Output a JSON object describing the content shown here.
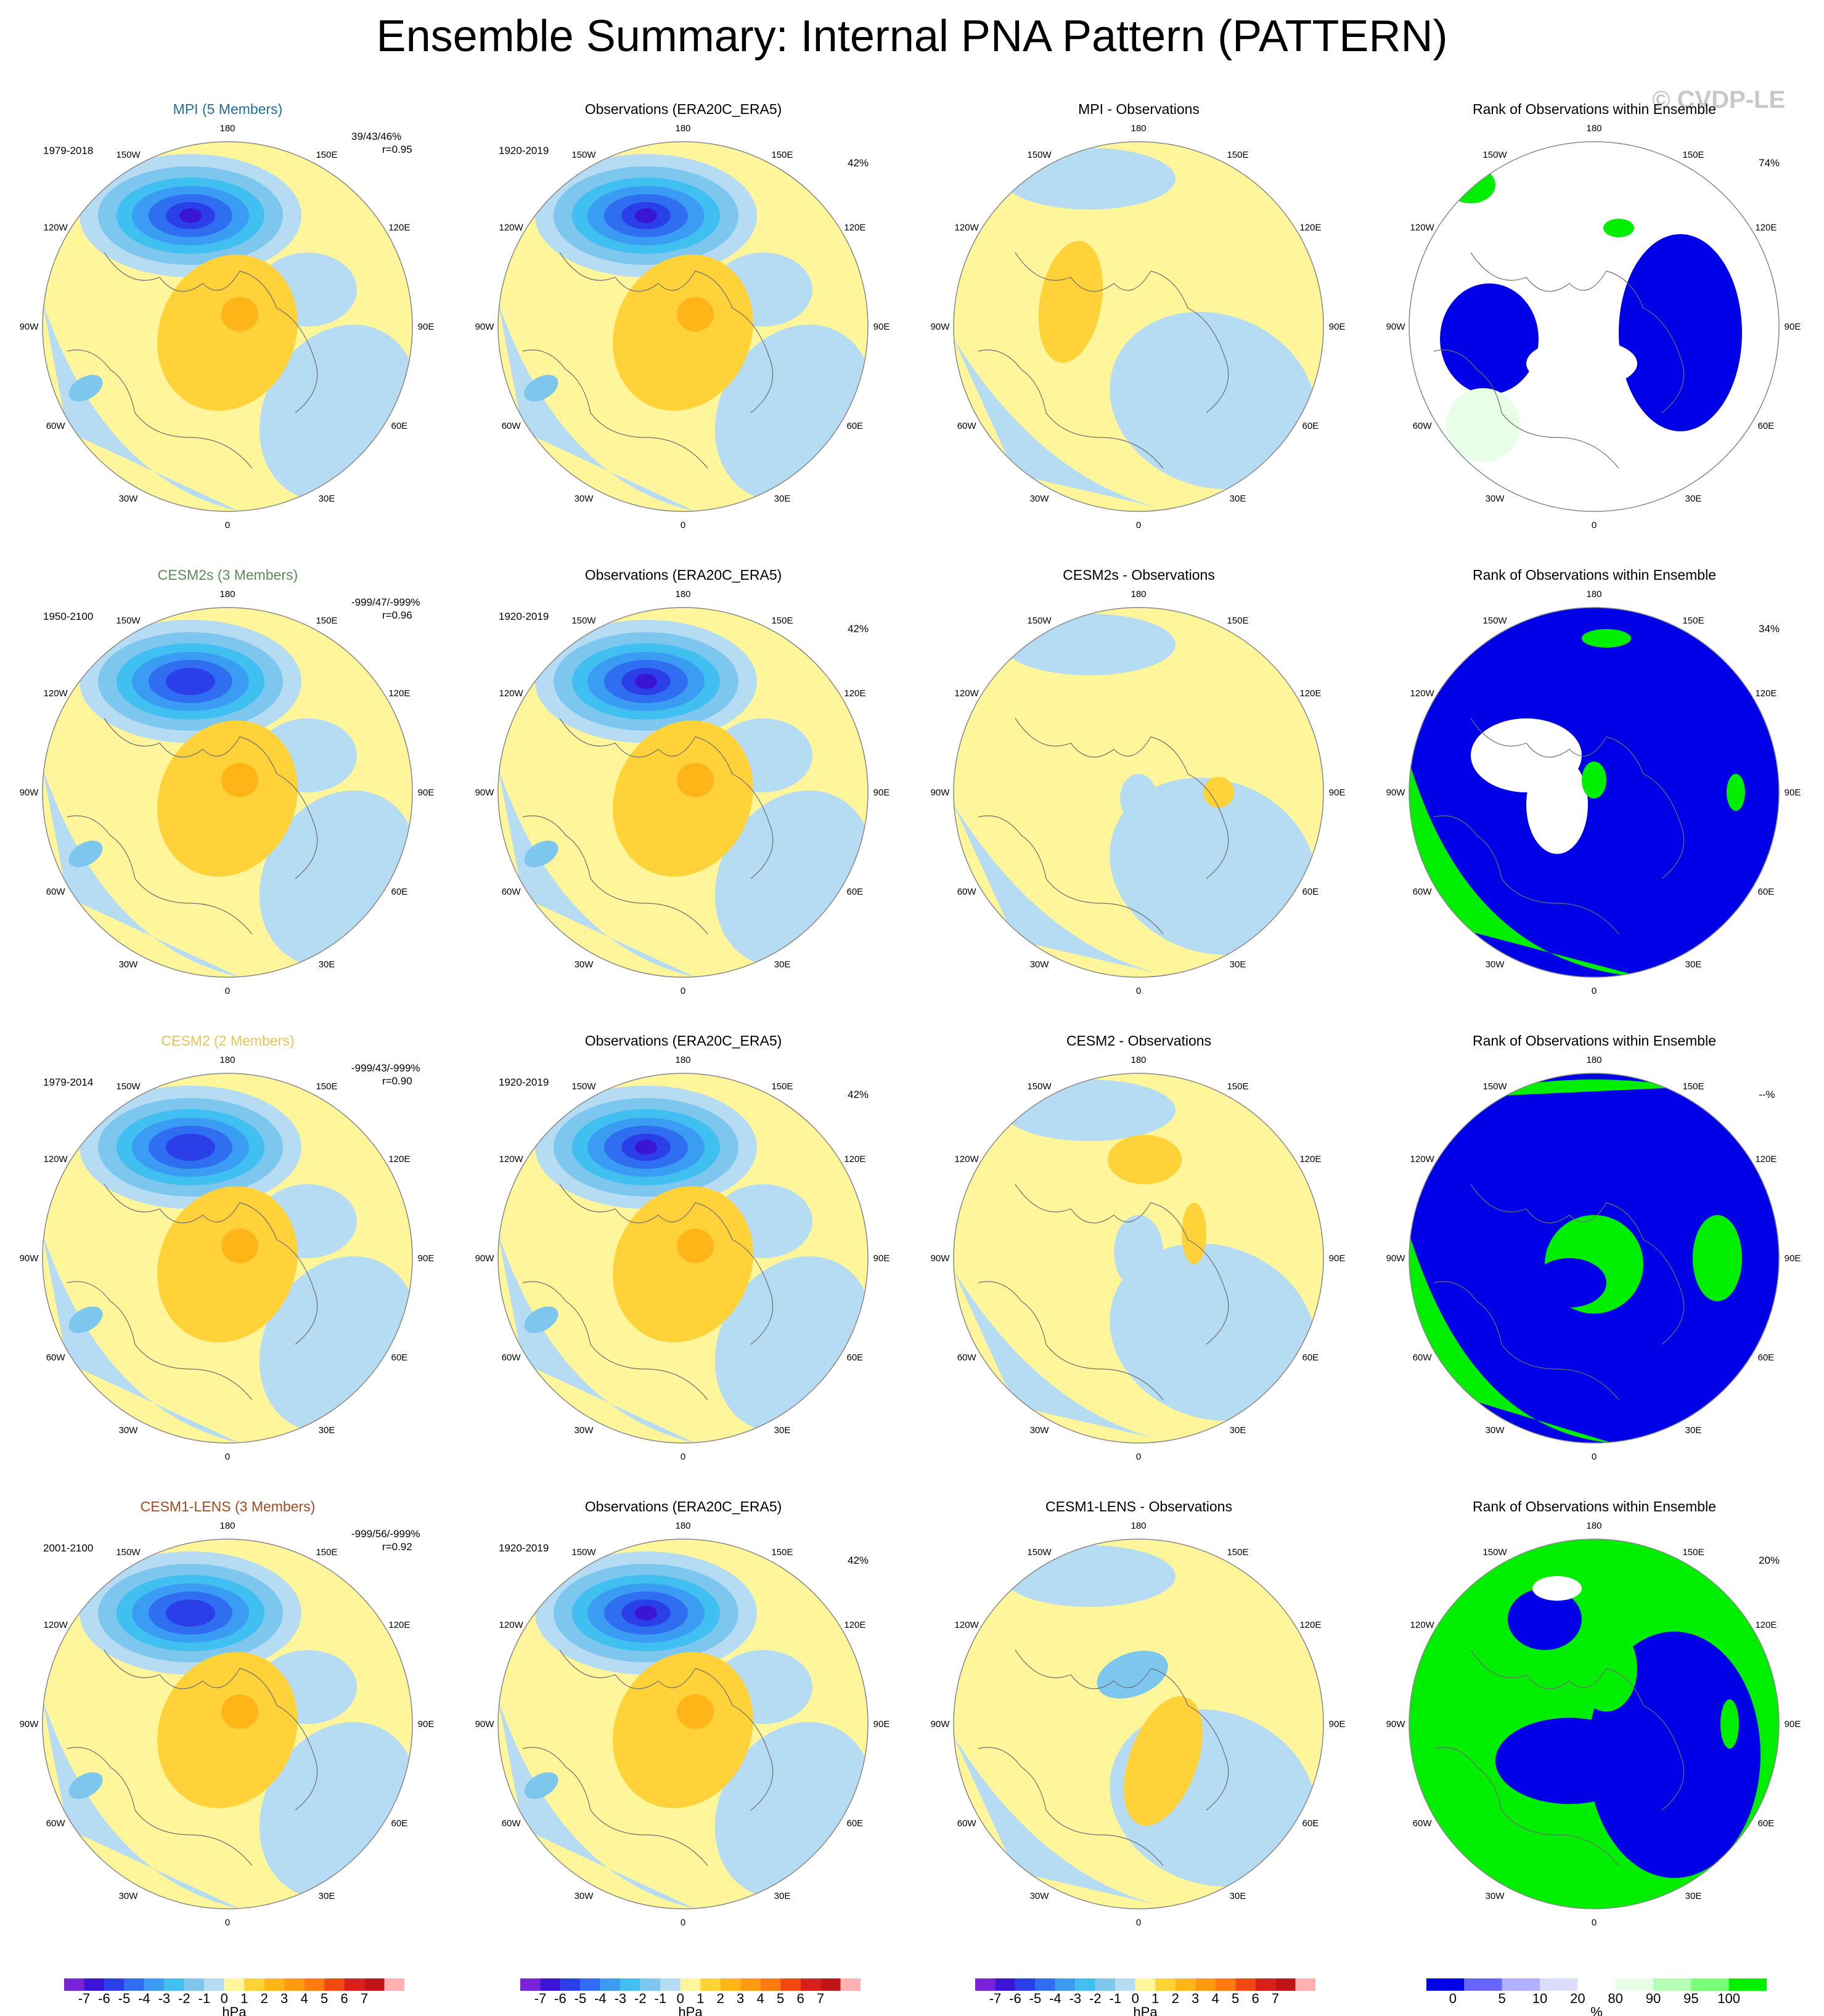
{
  "title": "Ensemble Summary: Internal PNA Pattern (PATTERN)",
  "watermark": "© CVDP-LE",
  "map_labels": {
    "lon_180": "180",
    "lon_150w": "150W",
    "lon_150e": "150E",
    "lon_120w": "120W",
    "lon_120e": "120E",
    "lon_90w": "90W",
    "lon_90e": "90E",
    "lon_60w": "60W",
    "lon_60e": "60E",
    "lon_30w": "30W",
    "lon_30e": "30E",
    "lon_0": "0"
  },
  "colors": {
    "model_titles": [
      "#1f6f9a",
      "#5b8c5a",
      "#e6c45a",
      "#a14a1f"
    ],
    "contour_scale": [
      "#7a22d6",
      "#3a15d6",
      "#2a3fe8",
      "#2f6ef0",
      "#3a9cf2",
      "#40c0f0",
      "#7dc6ee",
      "#b5dcf2",
      "#fff59a",
      "#ffd23a",
      "#ffb518",
      "#ff9a12",
      "#ff7a10",
      "#f04a10",
      "#d8201a",
      "#c01515",
      "#ffb0b0"
    ],
    "rank_scale": [
      "#0000e6",
      "#6666ff",
      "#b0b0ff",
      "#dcdcff",
      "#ffffff",
      "#e6ffe6",
      "#b4ffb4",
      "#78ff78",
      "#00ee00"
    ]
  },
  "rows": [
    {
      "model": {
        "title": "MPI (5 Members)",
        "years": "1979-2018",
        "stats1": "39/43/46%",
        "stats2": "r=0.95"
      },
      "obs": {
        "title": "Observations (ERA20C_ERA5)",
        "years": "1920-2019",
        "pct": "42%"
      },
      "diff": {
        "title": "MPI - Observations"
      },
      "rank": {
        "title": "Rank of Observations within Ensemble",
        "pct": "74%"
      }
    },
    {
      "model": {
        "title": "CESM2s (3 Members)",
        "years": "1950-2100",
        "stats1": "-999/47/-999%",
        "stats2": "r=0.96"
      },
      "obs": {
        "title": "Observations (ERA20C_ERA5)",
        "years": "1920-2019",
        "pct": "42%"
      },
      "diff": {
        "title": "CESM2s - Observations"
      },
      "rank": {
        "title": "Rank of Observations within Ensemble",
        "pct": "34%"
      }
    },
    {
      "model": {
        "title": "CESM2 (2 Members)",
        "years": "1979-2014",
        "stats1": "-999/43/-999%",
        "stats2": "r=0.90"
      },
      "obs": {
        "title": "Observations (ERA20C_ERA5)",
        "years": "1920-2019",
        "pct": "42%"
      },
      "diff": {
        "title": "CESM2 - Observations"
      },
      "rank": {
        "title": "Rank of Observations within Ensemble",
        "pct": "--%"
      }
    },
    {
      "model": {
        "title": "CESM1-LENS (3 Members)",
        "years": "2001-2100",
        "stats1": "-999/56/-999%",
        "stats2": "r=0.92"
      },
      "obs": {
        "title": "Observations (ERA20C_ERA5)",
        "years": "1920-2019",
        "pct": "42%"
      },
      "diff": {
        "title": "CESM1-LENS - Observations"
      },
      "rank": {
        "title": "Rank of Observations within Ensemble",
        "pct": "20%"
      }
    }
  ],
  "colorbar_contour": {
    "ticks": [
      "-7",
      "-6",
      "-5",
      "-4",
      "-3",
      "-2",
      "-1",
      "0",
      "1",
      "2",
      "3",
      "4",
      "5",
      "6",
      "7"
    ],
    "units": "hPa"
  },
  "colorbar_rank": {
    "ticks": [
      "0",
      "5",
      "10",
      "20",
      "80",
      "90",
      "95",
      "100"
    ],
    "units": "%"
  }
}
